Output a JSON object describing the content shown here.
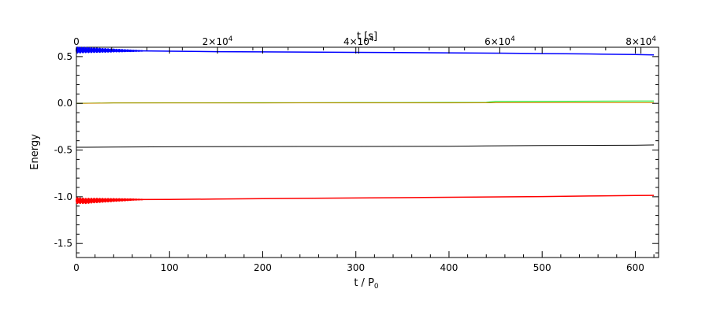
{
  "chart_data": {
    "type": "line",
    "title": "",
    "ylabel": "Energy",
    "xlabel_bottom": {
      "main": "t / P",
      "sub": "0"
    },
    "xlabel_top": "t [s]",
    "xlim_bottom": [
      0,
      625
    ],
    "xlim_top": [
      0,
      82500
    ],
    "ylim": [
      -1.65,
      0.6
    ],
    "grid": false,
    "legend": "none",
    "x_ticks_bottom": [
      0,
      100,
      200,
      300,
      400,
      500,
      600
    ],
    "x_ticks_top": [
      {
        "value": 0,
        "label": "0"
      },
      {
        "value": 20000,
        "label": "2×10",
        "exp": "4"
      },
      {
        "value": 40000,
        "label": "4×10",
        "exp": "4"
      },
      {
        "value": 60000,
        "label": "6×10",
        "exp": "4"
      },
      {
        "value": 80000,
        "label": "8×10",
        "exp": "4"
      }
    ],
    "y_ticks": [
      {
        "value": 0.5,
        "label": "0.5"
      },
      {
        "value": 0.0,
        "label": "0.0"
      },
      {
        "value": -0.5,
        "label": "-0.5"
      },
      {
        "value": -1.0,
        "label": "-1.0"
      },
      {
        "value": -1.5,
        "label": "-1.5"
      }
    ],
    "series": [
      {
        "color": "#0000ff",
        "width": 1.5,
        "markers": "circles-early",
        "x": [
          0,
          10,
          20,
          40,
          60,
          100,
          150,
          200,
          300,
          400,
          450,
          500,
          550,
          600,
          620
        ],
        "y": [
          0.57,
          0.57,
          0.568,
          0.565,
          0.562,
          0.558,
          0.553,
          0.55,
          0.545,
          0.54,
          0.537,
          0.533,
          0.528,
          0.522,
          0.518
        ]
      },
      {
        "color": "#00dd00",
        "width": 1,
        "x": [
          0,
          40,
          100,
          200,
          300,
          400,
          440,
          450,
          500,
          600,
          620
        ],
        "y": [
          0.0,
          0.005,
          0.006,
          0.007,
          0.008,
          0.009,
          0.01,
          0.02,
          0.022,
          0.025,
          0.025
        ]
      },
      {
        "color": "#cc8800",
        "width": 1,
        "x": [
          0,
          40,
          100,
          200,
          300,
          400,
          500,
          600,
          620
        ],
        "y": [
          0.0,
          0.003,
          0.004,
          0.004,
          0.005,
          0.005,
          0.006,
          0.006,
          0.006
        ]
      },
      {
        "color": "#000000",
        "width": 1,
        "x": [
          0,
          10,
          40,
          100,
          200,
          300,
          400,
          440,
          500,
          600,
          620
        ],
        "y": [
          -0.47,
          -0.47,
          -0.468,
          -0.465,
          -0.463,
          -0.462,
          -0.46,
          -0.455,
          -0.452,
          -0.448,
          -0.445
        ]
      },
      {
        "color": "#ff0000",
        "width": 1.5,
        "markers": "circles-early",
        "x": [
          0,
          10,
          20,
          40,
          60,
          100,
          150,
          200,
          300,
          400,
          500,
          550,
          600,
          620
        ],
        "y": [
          -1.04,
          -1.045,
          -1.04,
          -1.035,
          -1.03,
          -1.028,
          -1.025,
          -1.02,
          -1.013,
          -1.005,
          -0.998,
          -0.992,
          -0.987,
          -0.985
        ]
      }
    ]
  }
}
